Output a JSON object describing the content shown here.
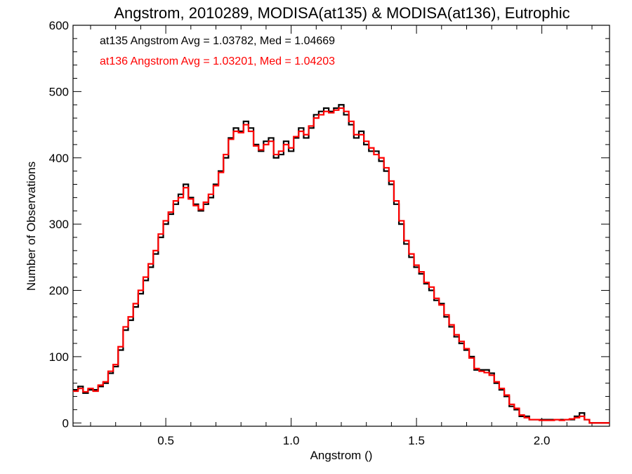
{
  "chart_data": {
    "type": "line",
    "title": "Angstrom, 2010289, MODISA(at135) & MODISA(at136), Eutrophic",
    "xlabel": "Angstrom ()",
    "ylabel": "Number of Observations",
    "xlim": [
      0.13,
      2.27
    ],
    "ylim": [
      -5,
      600
    ],
    "xticks": [
      0.5,
      1.0,
      1.5,
      2.0
    ],
    "xtick_labels": [
      "0.5",
      "1.0",
      "1.5",
      "2.0"
    ],
    "yticks": [
      0,
      100,
      200,
      300,
      400,
      500,
      600
    ],
    "ytick_labels": [
      "0",
      "100",
      "200",
      "300",
      "400",
      "500",
      "600"
    ],
    "grid": false,
    "legend_position": "top-left",
    "series": [
      {
        "name": "at135 Angstrom Avg = 1.03782, Med = 1.04669",
        "color": "#000000",
        "x": [
          0.13,
          0.15,
          0.17,
          0.19,
          0.21,
          0.23,
          0.25,
          0.27,
          0.29,
          0.31,
          0.33,
          0.35,
          0.37,
          0.39,
          0.41,
          0.43,
          0.45,
          0.47,
          0.49,
          0.51,
          0.53,
          0.55,
          0.57,
          0.59,
          0.61,
          0.63,
          0.65,
          0.67,
          0.69,
          0.71,
          0.73,
          0.75,
          0.77,
          0.79,
          0.81,
          0.83,
          0.85,
          0.87,
          0.89,
          0.91,
          0.93,
          0.95,
          0.97,
          0.99,
          1.01,
          1.03,
          1.05,
          1.07,
          1.09,
          1.11,
          1.13,
          1.15,
          1.17,
          1.19,
          1.21,
          1.23,
          1.25,
          1.27,
          1.29,
          1.31,
          1.33,
          1.35,
          1.37,
          1.39,
          1.41,
          1.43,
          1.45,
          1.47,
          1.49,
          1.51,
          1.53,
          1.55,
          1.57,
          1.59,
          1.61,
          1.63,
          1.65,
          1.67,
          1.69,
          1.71,
          1.73,
          1.75,
          1.77,
          1.79,
          1.81,
          1.83,
          1.85,
          1.87,
          1.89,
          1.91,
          1.93,
          1.95,
          1.97,
          1.99,
          2.01,
          2.03,
          2.05,
          2.07,
          2.09,
          2.11,
          2.13,
          2.15,
          2.17,
          2.19,
          2.21,
          2.23,
          2.25
        ],
        "values": [
          50,
          55,
          45,
          50,
          50,
          55,
          60,
          75,
          85,
          110,
          140,
          155,
          175,
          195,
          215,
          235,
          255,
          280,
          300,
          315,
          330,
          345,
          360,
          340,
          330,
          320,
          330,
          340,
          360,
          380,
          400,
          430,
          445,
          440,
          455,
          445,
          420,
          410,
          425,
          430,
          400,
          405,
          425,
          410,
          430,
          445,
          430,
          445,
          465,
          470,
          475,
          470,
          475,
          480,
          465,
          450,
          430,
          440,
          420,
          410,
          410,
          395,
          380,
          360,
          330,
          300,
          270,
          250,
          235,
          225,
          210,
          200,
          185,
          180,
          160,
          145,
          130,
          120,
          110,
          100,
          80,
          80,
          80,
          75,
          60,
          50,
          40,
          25,
          20,
          10,
          10,
          5,
          5,
          5,
          5,
          5,
          5,
          5,
          5,
          5,
          10,
          15,
          5,
          0,
          0,
          0,
          0
        ]
      },
      {
        "name": "at136 Angstrom Avg = 1.03201, Med = 1.04203",
        "color": "#ff0000",
        "x": [
          0.13,
          0.15,
          0.17,
          0.19,
          0.21,
          0.23,
          0.25,
          0.27,
          0.29,
          0.31,
          0.33,
          0.35,
          0.37,
          0.39,
          0.41,
          0.43,
          0.45,
          0.47,
          0.49,
          0.51,
          0.53,
          0.55,
          0.57,
          0.59,
          0.61,
          0.63,
          0.65,
          0.67,
          0.69,
          0.71,
          0.73,
          0.75,
          0.77,
          0.79,
          0.81,
          0.83,
          0.85,
          0.87,
          0.89,
          0.91,
          0.93,
          0.95,
          0.97,
          0.99,
          1.01,
          1.03,
          1.05,
          1.07,
          1.09,
          1.11,
          1.13,
          1.15,
          1.17,
          1.19,
          1.21,
          1.23,
          1.25,
          1.27,
          1.29,
          1.31,
          1.33,
          1.35,
          1.37,
          1.39,
          1.41,
          1.43,
          1.45,
          1.47,
          1.49,
          1.51,
          1.53,
          1.55,
          1.57,
          1.59,
          1.61,
          1.63,
          1.65,
          1.67,
          1.69,
          1.71,
          1.73,
          1.75,
          1.77,
          1.79,
          1.81,
          1.83,
          1.85,
          1.87,
          1.89,
          1.91,
          1.93,
          1.95,
          1.97,
          1.99,
          2.01,
          2.03,
          2.05,
          2.07,
          2.09,
          2.11,
          2.13,
          2.15,
          2.17,
          2.19,
          2.21,
          2.23,
          2.25
        ],
        "values": [
          48,
          52,
          47,
          52,
          48,
          57,
          62,
          78,
          88,
          115,
          145,
          160,
          180,
          200,
          220,
          240,
          260,
          285,
          305,
          318,
          335,
          340,
          355,
          338,
          328,
          322,
          333,
          345,
          358,
          378,
          405,
          428,
          440,
          438,
          450,
          440,
          418,
          412,
          420,
          425,
          405,
          410,
          420,
          415,
          432,
          440,
          435,
          448,
          460,
          465,
          470,
          468,
          472,
          475,
          470,
          455,
          435,
          435,
          425,
          415,
          405,
          400,
          385,
          365,
          335,
          305,
          275,
          255,
          238,
          228,
          212,
          205,
          188,
          178,
          163,
          148,
          133,
          123,
          112,
          98,
          82,
          78,
          76,
          72,
          62,
          52,
          42,
          28,
          22,
          12,
          8,
          5,
          5,
          4,
          4,
          4,
          5,
          4,
          5,
          6,
          8,
          10,
          5,
          0,
          0,
          0,
          0
        ]
      }
    ]
  }
}
